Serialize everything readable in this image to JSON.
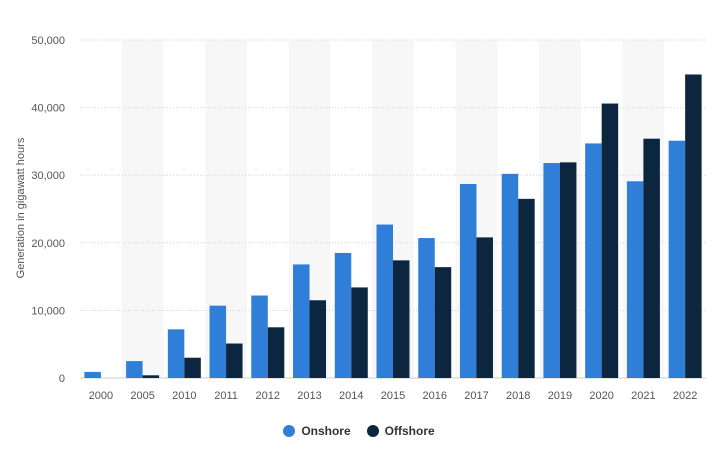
{
  "chart_data": {
    "type": "bar",
    "categories": [
      "2000",
      "2005",
      "2010",
      "2011",
      "2012",
      "2013",
      "2014",
      "2015",
      "2016",
      "2017",
      "2018",
      "2019",
      "2020",
      "2021",
      "2022"
    ],
    "series": [
      {
        "name": "Onshore",
        "color": "#2f7ed8",
        "values": [
          900,
          2500,
          7200,
          10700,
          12200,
          16800,
          18500,
          22700,
          20700,
          28700,
          30200,
          31800,
          34700,
          29100,
          35100
        ]
      },
      {
        "name": "Offshore",
        "color": "#0d2640",
        "values": [
          0,
          400,
          3000,
          5100,
          7500,
          11500,
          13400,
          17400,
          16400,
          20800,
          26500,
          31900,
          40600,
          35400,
          44900
        ]
      }
    ],
    "ylabel": "Generation in gigawatt hours",
    "xlabel": "",
    "ylim": [
      0,
      50000
    ],
    "yticks": [
      0,
      10000,
      20000,
      30000,
      40000,
      50000
    ],
    "ytick_labels": [
      "0",
      "10,000",
      "20,000",
      "30,000",
      "40,000",
      "50,000"
    ],
    "grid": true,
    "legend": "bottom-center"
  }
}
